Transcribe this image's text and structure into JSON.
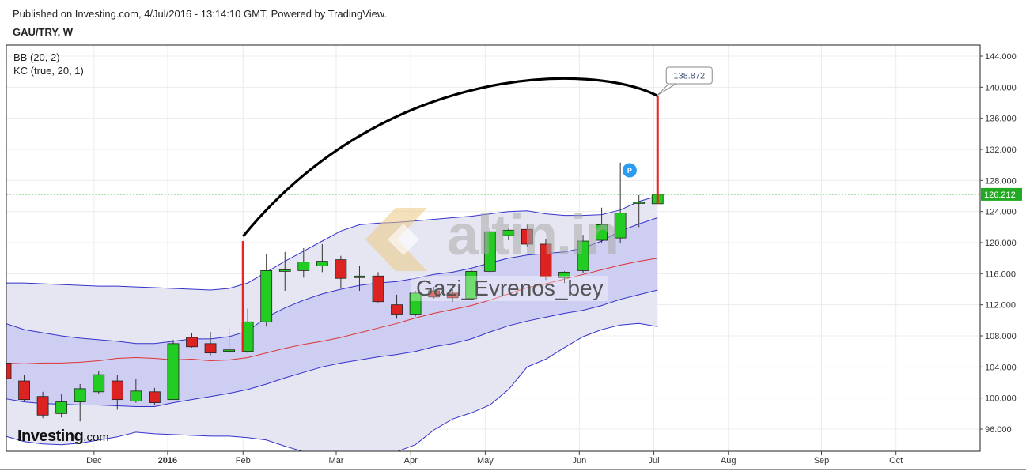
{
  "header": {
    "published": "Published on Investing.com, 4/Jul/2016 - 13:14:10 GMT, Powered by TradingView.",
    "symbol": "GAU/TRY, W"
  },
  "indicators": {
    "bb": "BB (20, 2)",
    "kc": "KC (true, 20, 1)"
  },
  "branding": {
    "logo_main": "Investing",
    "logo_suffix": ".com",
    "watermark_brand": "altin.in",
    "watermark_user": "Gazi_Evrenos_bey"
  },
  "colors": {
    "up": "#22cc22",
    "down": "#dd2222",
    "bb_fill": "#e6e6f2",
    "kc_fill": "#c9c9f2",
    "band_line": "#3333cc",
    "basis": "#dd3333",
    "current_price": "#22aa22",
    "arc": "#000000",
    "spike": "#ee2222"
  },
  "chart_data": {
    "type": "candlestick",
    "title": "GAU/TRY, W",
    "ylim": [
      94,
      145.5
    ],
    "y_ticks": [
      "144.000",
      "140.000",
      "136.000",
      "132.000",
      "128.000",
      "124.000",
      "120.000",
      "116.000",
      "112.000",
      "108.000",
      "104.000",
      "100.000",
      "96.000"
    ],
    "x_labels": [
      "Dec",
      "2016",
      "Feb",
      "Mar",
      "Apr",
      "May",
      "Jun",
      "Jul",
      "Aug",
      "Sep",
      "Oct"
    ],
    "current_price": "126.212",
    "callout_value": "138.872",
    "marker_label": "P",
    "candles": [
      {
        "o": 104.5,
        "h": 105.0,
        "l": 102.5,
        "c": 102.5
      },
      {
        "o": 102.2,
        "h": 103.0,
        "l": 99.6,
        "c": 99.8
      },
      {
        "o": 100.2,
        "h": 100.8,
        "l": 97.4,
        "c": 97.8
      },
      {
        "o": 98.0,
        "h": 100.5,
        "l": 97.5,
        "c": 99.5
      },
      {
        "o": 99.5,
        "h": 101.8,
        "l": 97.0,
        "c": 101.2
      },
      {
        "o": 100.8,
        "h": 103.5,
        "l": 100.5,
        "c": 103.0
      },
      {
        "o": 102.2,
        "h": 103.0,
        "l": 98.5,
        "c": 99.8
      },
      {
        "o": 99.6,
        "h": 102.5,
        "l": 99.4,
        "c": 100.9
      },
      {
        "o": 100.8,
        "h": 101.3,
        "l": 99.1,
        "c": 99.4
      },
      {
        "o": 99.8,
        "h": 107.5,
        "l": 99.8,
        "c": 107.0
      },
      {
        "o": 107.8,
        "h": 108.3,
        "l": 106.5,
        "c": 106.6
      },
      {
        "o": 107.0,
        "h": 108.5,
        "l": 105.5,
        "c": 105.8
      },
      {
        "o": 106.0,
        "h": 109.0,
        "l": 105.8,
        "c": 106.2
      },
      {
        "o": 106.0,
        "h": 111.5,
        "l": 105.8,
        "c": 109.8
      },
      {
        "o": 109.8,
        "h": 118.5,
        "l": 109.2,
        "c": 116.4
      },
      {
        "o": 116.3,
        "h": 118.8,
        "l": 113.8,
        "c": 116.5
      },
      {
        "o": 116.4,
        "h": 119.3,
        "l": 115.5,
        "c": 117.5
      },
      {
        "o": 117.0,
        "h": 119.8,
        "l": 116.2,
        "c": 117.6
      },
      {
        "o": 117.8,
        "h": 118.3,
        "l": 114.2,
        "c": 115.4
      },
      {
        "o": 115.5,
        "h": 117.0,
        "l": 113.8,
        "c": 115.7
      },
      {
        "o": 115.7,
        "h": 116.2,
        "l": 112.3,
        "c": 112.4
      },
      {
        "o": 112.0,
        "h": 113.3,
        "l": 110.2,
        "c": 110.8
      },
      {
        "o": 110.8,
        "h": 113.8,
        "l": 110.5,
        "c": 113.5
      },
      {
        "o": 113.8,
        "h": 114.3,
        "l": 112.8,
        "c": 113.0
      },
      {
        "o": 113.5,
        "h": 114.0,
        "l": 112.4,
        "c": 112.9
      },
      {
        "o": 112.8,
        "h": 116.5,
        "l": 112.5,
        "c": 116.3
      },
      {
        "o": 116.3,
        "h": 121.8,
        "l": 116.0,
        "c": 121.4
      },
      {
        "o": 120.9,
        "h": 121.8,
        "l": 120.3,
        "c": 121.6
      },
      {
        "o": 121.7,
        "h": 122.3,
        "l": 119.5,
        "c": 119.8
      },
      {
        "o": 119.8,
        "h": 120.4,
        "l": 115.2,
        "c": 115.6
      },
      {
        "o": 115.5,
        "h": 116.3,
        "l": 114.8,
        "c": 116.2
      },
      {
        "o": 116.4,
        "h": 121.0,
        "l": 116.1,
        "c": 120.2
      },
      {
        "o": 120.3,
        "h": 124.5,
        "l": 120.0,
        "c": 122.3
      },
      {
        "o": 120.6,
        "h": 130.3,
        "l": 120.0,
        "c": 123.8
      },
      {
        "o": 125.1,
        "h": 126.1,
        "l": 122.0,
        "c": 125.2
      },
      {
        "o": 125.0,
        "h": 138.872,
        "l": 124.8,
        "c": 126.212
      }
    ],
    "bb_upper": [
      114.8,
      114.8,
      114.7,
      114.6,
      114.5,
      114.4,
      114.4,
      114.3,
      114.2,
      114.1,
      114.0,
      113.9,
      114.1,
      114.8,
      116.2,
      117.6,
      118.9,
      120.2,
      121.5,
      122.3,
      122.5,
      122.6,
      122.8,
      123.0,
      123.2,
      123.4,
      123.7,
      124.0,
      124.1,
      123.7,
      123.5,
      123.5,
      123.6,
      124.2,
      125.3,
      126.0
    ],
    "kc_upper": [
      109.6,
      108.8,
      108.4,
      108.0,
      107.7,
      107.5,
      107.3,
      107.0,
      107.0,
      107.3,
      107.6,
      107.6,
      107.9,
      108.6,
      110.4,
      111.6,
      112.6,
      113.4,
      114.0,
      114.5,
      114.8,
      115.0,
      115.4,
      115.9,
      116.2,
      116.7,
      117.4,
      118.0,
      118.4,
      118.6,
      118.8,
      119.3,
      120.2,
      121.5,
      122.4,
      123.2
    ],
    "basis": [
      104.5,
      104.4,
      104.5,
      104.5,
      104.6,
      104.8,
      105.1,
      105.2,
      105.1,
      104.9,
      105.0,
      104.8,
      104.9,
      105.2,
      105.8,
      106.4,
      106.9,
      107.3,
      107.8,
      108.4,
      109.0,
      109.6,
      110.3,
      110.9,
      111.4,
      111.9,
      112.6,
      113.4,
      114.2,
      114.7,
      115.3,
      115.9,
      116.5,
      117.1,
      117.6,
      118.0
    ],
    "kc_lower": [
      99.9,
      99.5,
      99.3,
      99.2,
      99.1,
      99.1,
      99.0,
      98.9,
      98.9,
      99.4,
      99.8,
      100.2,
      100.6,
      101.1,
      101.8,
      102.6,
      103.3,
      104.0,
      104.5,
      104.9,
      105.3,
      105.6,
      106.0,
      106.6,
      107.0,
      107.6,
      108.5,
      109.3,
      109.9,
      110.4,
      110.9,
      111.3,
      111.9,
      112.7,
      113.3,
      113.9
    ],
    "bb_lower": [
      95.1,
      94.4,
      94.1,
      94.0,
      94.2,
      94.6,
      95.0,
      95.6,
      95.4,
      95.3,
      95.2,
      95.1,
      95.1,
      94.9,
      94.6,
      93.8,
      93.1,
      92.6,
      92.2,
      92.1,
      92.6,
      93.1,
      94.0,
      95.9,
      97.3,
      98.1,
      99.1,
      101.1,
      104.0,
      105.0,
      106.5,
      107.9,
      108.8,
      109.4,
      109.6,
      109.2
    ]
  }
}
